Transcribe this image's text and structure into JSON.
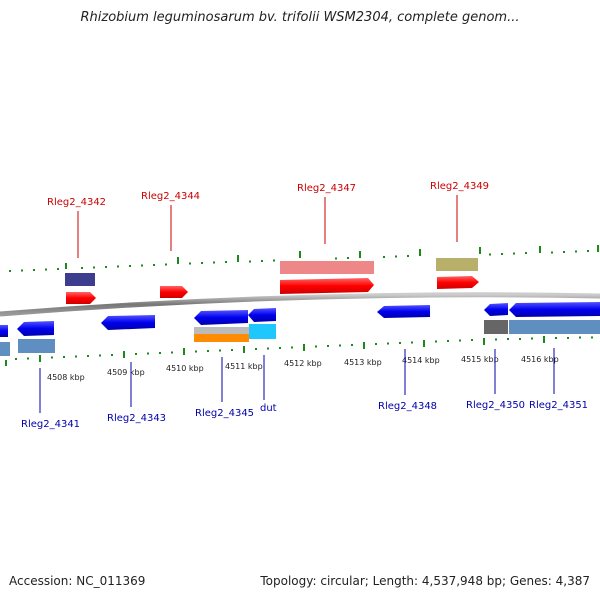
{
  "title": "Rhizobium leguminosarum bv. trifolii WSM2304, complete genom...",
  "footer": {
    "accession": "Accession: NC_011369",
    "topology": "Topology: circular; Length: 4,537,948 bp; Genes: 4,387"
  },
  "colors": {
    "forward_gene": "#ff0000",
    "reverse_gene": "#0000ee",
    "forward_label": "#cc0000",
    "reverse_label": "#0000aa",
    "tick": "#1a8a1a",
    "backbone": "#888888"
  },
  "tick_labels": [
    "4508 kbp",
    "4509 kbp",
    "4510 kbp",
    "4511 kbp",
    "4512 kbp",
    "4513 kbp",
    "4514 kbp",
    "4515 kbp",
    "4516 kbp"
  ],
  "genes_top": [
    "Rleg2_4342",
    "Rleg2_4344",
    "Rleg2_4347",
    "Rleg2_4349"
  ],
  "genes_bottom": [
    "Rleg2_4341",
    "Rleg2_4343",
    "Rleg2_4345",
    "dut",
    "Rleg2_4348",
    "Rleg2_4350",
    "Rleg2_4351"
  ]
}
